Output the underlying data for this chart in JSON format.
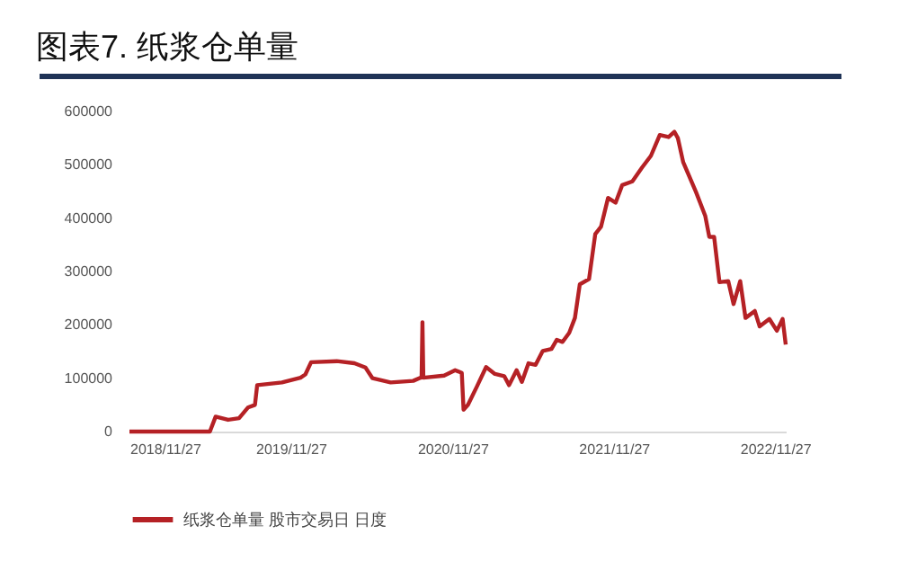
{
  "chart_data": {
    "type": "line",
    "title": "图表7.    纸浆仓单量",
    "x": [
      "2018-11-27",
      "2019-05-28",
      "2019-06-10",
      "2019-07-08",
      "2019-08-02",
      "2019-08-22",
      "2019-09-07",
      "2019-09-12",
      "2019-11-07",
      "2019-12-19",
      "2019-12-30",
      "2020-01-12",
      "2020-03-10",
      "2020-04-19",
      "2020-05-14",
      "2020-05-30",
      "2020-07-10",
      "2020-08-30",
      "2020-09-16",
      "2020-09-18",
      "2020-09-20",
      "2020-09-22",
      "2020-11-08",
      "2020-12-03",
      "2020-12-18",
      "2020-12-22",
      "2021-01-01",
      "2021-01-21",
      "2021-02-11",
      "2021-03-03",
      "2021-03-24",
      "2021-04-04",
      "2021-04-21",
      "2021-05-03",
      "2021-05-18",
      "2021-06-03",
      "2021-06-19",
      "2021-07-09",
      "2021-07-21",
      "2021-08-03",
      "2021-08-18",
      "2021-08-31",
      "2021-09-11",
      "2021-10-02",
      "2021-10-16",
      "2021-10-29",
      "2021-11-14",
      "2021-12-01",
      "2021-12-16",
      "2022-01-08",
      "2022-01-30",
      "2022-02-19",
      "2022-03-11",
      "2022-03-31",
      "2022-04-13",
      "2022-04-21",
      "2022-05-03",
      "2022-06-01",
      "2022-06-22",
      "2022-07-01",
      "2022-07-12",
      "2022-07-24",
      "2022-08-13",
      "2022-08-25",
      "2022-09-09",
      "2022-09-21",
      "2022-10-12",
      "2022-10-23",
      "2022-11-14",
      "2022-12-01",
      "2022-12-14",
      "2022-12-21"
    ],
    "series": [
      {
        "name": "纸浆仓单量 股市交易日 日度",
        "color": "#b52125",
        "values": [
          0,
          0,
          28000,
          22000,
          25000,
          45000,
          50000,
          87000,
          92000,
          101000,
          107000,
          130000,
          132000,
          128000,
          120000,
          100000,
          92000,
          95000,
          101000,
          101000,
          205000,
          101000,
          105000,
          115000,
          110000,
          41000,
          50000,
          84000,
          121000,
          108000,
          104000,
          87000,
          115000,
          93000,
          128000,
          125000,
          151000,
          155000,
          172000,
          168000,
          185000,
          213000,
          276000,
          286000,
          370000,
          384000,
          438000,
          429000,
          462000,
          469000,
          495000,
          517000,
          556000,
          552000,
          562000,
          550000,
          505000,
          449000,
          404000,
          365000,
          365000,
          280000,
          282000,
          239000,
          282000,
          213000,
          226000,
          197000,
          211000,
          189000,
          211000,
          163000
        ]
      }
    ],
    "xlim": [
      "2018-11-27",
      "2022-12-21"
    ],
    "xticks": [
      {
        "value": "2018-11-27",
        "label": "2018/11/27"
      },
      {
        "value": "2019-11-27",
        "label": "2019/11/27"
      },
      {
        "value": "2020-11-27",
        "label": "2020/11/27"
      },
      {
        "value": "2021-11-27",
        "label": "2021/11/27"
      },
      {
        "value": "2022-11-27",
        "label": "2022/11/27"
      }
    ],
    "ylim": [
      0,
      600000
    ],
    "yticks": [
      0,
      100000,
      200000,
      300000,
      400000,
      500000,
      600000
    ],
    "grid": false,
    "legend": "bottom"
  }
}
